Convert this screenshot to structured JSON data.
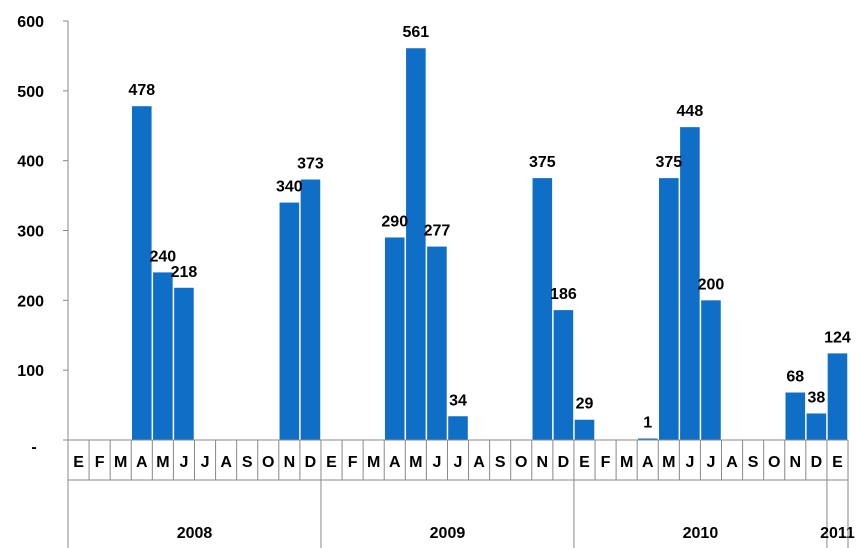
{
  "chart_data": {
    "type": "bar",
    "bar_color": "#0f6fc6",
    "grid": false,
    "legend": "none",
    "ylim": [
      0,
      600
    ],
    "y_ticks": [
      "-",
      "100",
      "200",
      "300",
      "400",
      "500",
      "600"
    ],
    "categories": [
      "E",
      "F",
      "M",
      "A",
      "M",
      "J",
      "J",
      "A",
      "S",
      "O",
      "N",
      "D",
      "E",
      "F",
      "M",
      "A",
      "M",
      "J",
      "J",
      "A",
      "S",
      "O",
      "N",
      "D",
      "E",
      "F",
      "M",
      "A",
      "M",
      "J",
      "J",
      "A",
      "S",
      "O",
      "N",
      "D",
      "E"
    ],
    "values": [
      null,
      null,
      null,
      478,
      240,
      218,
      null,
      null,
      null,
      null,
      340,
      373,
      null,
      null,
      null,
      290,
      561,
      277,
      34,
      null,
      null,
      null,
      375,
      186,
      29,
      null,
      null,
      1,
      375,
      448,
      200,
      null,
      null,
      null,
      68,
      38,
      124
    ],
    "data_labels": [
      "",
      "",
      "",
      "478",
      "240",
      "218",
      "",
      "",
      "",
      "",
      "340",
      "373",
      "",
      "",
      "",
      "290",
      "561",
      "277",
      "34",
      "",
      "",
      "",
      "375",
      "186",
      "29",
      "",
      "",
      "1",
      "375",
      "448",
      "200",
      "",
      "",
      "",
      "68",
      "38",
      "124"
    ],
    "year_groups": [
      {
        "label": "2008",
        "start": 0,
        "count": 12
      },
      {
        "label": "2009",
        "start": 12,
        "count": 12
      },
      {
        "label": "2010",
        "start": 24,
        "count": 12
      },
      {
        "label": "2011",
        "start": 36,
        "count": 1
      }
    ],
    "title": "",
    "xlabel": "",
    "ylabel": ""
  }
}
